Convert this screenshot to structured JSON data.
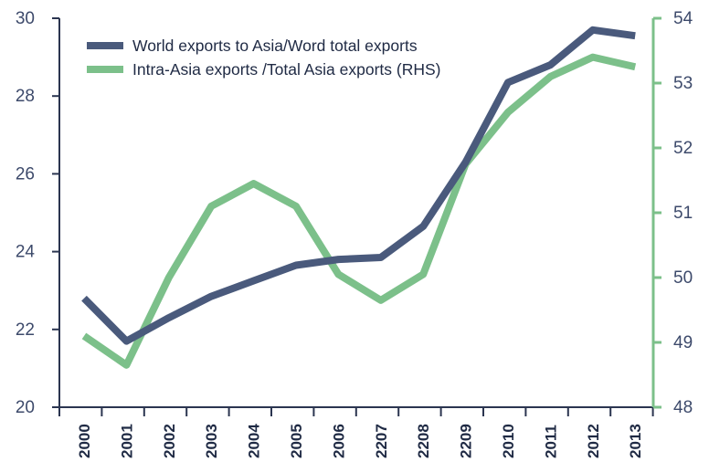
{
  "chart_data": {
    "type": "line",
    "categories": [
      "2000",
      "2001",
      "2002",
      "2003",
      "2004",
      "2005",
      "2006",
      "2207",
      "2208",
      "2209",
      "2010",
      "2011",
      "2012",
      "2013"
    ],
    "y_left": {
      "ticks": [
        20,
        22,
        24,
        26,
        28,
        30
      ],
      "ylim": [
        20,
        30
      ]
    },
    "y_right": {
      "ticks": [
        48,
        49,
        50,
        51,
        52,
        53,
        54
      ],
      "ylim": [
        48,
        54
      ]
    },
    "series": [
      {
        "name": "World exports to Asia/Word total exports",
        "axis": "left",
        "color": "#4a5a7c",
        "values": [
          22.8,
          21.7,
          22.3,
          22.85,
          23.25,
          23.65,
          23.8,
          23.85,
          24.65,
          26.3,
          28.35,
          28.8,
          29.7,
          29.55
        ]
      },
      {
        "name": "Intra-Asia exports /Total Asia exports (RHS)",
        "axis": "right",
        "color": "#7cc08a",
        "values": [
          49.1,
          48.65,
          50.0,
          51.1,
          51.45,
          51.1,
          50.05,
          49.65,
          50.05,
          51.75,
          52.55,
          53.1,
          53.4,
          53.25
        ]
      }
    ],
    "legend_position": "top-left",
    "grid": false
  },
  "colors": {
    "left_axis": "#2b3550",
    "right_axis": "#7cc08a",
    "tick_text": "#3d4a6b"
  }
}
